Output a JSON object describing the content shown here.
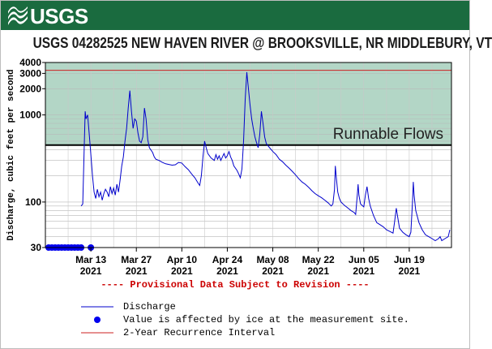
{
  "header": {
    "logo_text": "USGS",
    "banner_color": "#1a6b3f"
  },
  "chart_data": {
    "type": "line",
    "title": "USGS 04282525 NEW HAVEN RIVER @ BROOKSVILLE, NR MIDDLEBURY, VT",
    "ylabel": "Discharge, cubic feet per second",
    "xlabel": "",
    "y_scale": "log",
    "ylim": [
      30,
      4000
    ],
    "xlim": [
      "2021-02-27",
      "2021-07-02"
    ],
    "y_ticks": [
      {
        "value": 30,
        "label": "30"
      },
      {
        "value": 100,
        "label": "100"
      },
      {
        "value": 1000,
        "label": "1000"
      },
      {
        "value": 2000,
        "label": "2000"
      },
      {
        "value": 3000,
        "label": "3000"
      },
      {
        "value": 4000,
        "label": "4000"
      }
    ],
    "x_ticks": [
      {
        "date": "2021-03-13",
        "line1": "Mar 13",
        "line2": "2021"
      },
      {
        "date": "2021-03-27",
        "line1": "Mar 27",
        "line2": "2021"
      },
      {
        "date": "2021-04-10",
        "line1": "Apr 10",
        "line2": "2021"
      },
      {
        "date": "2021-04-24",
        "line1": "Apr 24",
        "line2": "2021"
      },
      {
        "date": "2021-05-08",
        "line1": "May 08",
        "line2": "2021"
      },
      {
        "date": "2021-05-22",
        "line1": "May 22",
        "line2": "2021"
      },
      {
        "date": "2021-06-05",
        "line1": "Jun 05",
        "line2": "2021"
      },
      {
        "date": "2021-06-19",
        "line1": "Jun 19",
        "line2": "2021"
      }
    ],
    "grid": true,
    "band": {
      "label": "Runnable Flows",
      "from": 450,
      "to": 4000,
      "color": "#b3d6c6"
    },
    "recurrence_interval": {
      "value": 3250,
      "color": "#cc2222"
    },
    "series": [
      {
        "name": "Discharge",
        "color": "#0000cc",
        "points": [
          [
            "2021-03-10",
            90
          ],
          [
            "2021-03-10T12",
            95
          ],
          [
            "2021-03-11",
            500
          ],
          [
            "2021-03-11T06",
            1100
          ],
          [
            "2021-03-11T12",
            900
          ],
          [
            "2021-03-12",
            1000
          ],
          [
            "2021-03-12T12",
            600
          ],
          [
            "2021-03-13",
            350
          ],
          [
            "2021-03-13T12",
            200
          ],
          [
            "2021-03-14",
            130
          ],
          [
            "2021-03-14T12",
            110
          ],
          [
            "2021-03-15",
            140
          ],
          [
            "2021-03-15T12",
            115
          ],
          [
            "2021-03-16",
            130
          ],
          [
            "2021-03-16T12",
            105
          ],
          [
            "2021-03-17",
            125
          ],
          [
            "2021-03-17T12",
            140
          ],
          [
            "2021-03-18",
            130
          ],
          [
            "2021-03-18T12",
            115
          ],
          [
            "2021-03-19",
            150
          ],
          [
            "2021-03-19T12",
            125
          ],
          [
            "2021-03-20",
            145
          ],
          [
            "2021-03-20T12",
            120
          ],
          [
            "2021-03-21",
            160
          ],
          [
            "2021-03-21T12",
            130
          ],
          [
            "2021-03-22",
            180
          ],
          [
            "2021-03-22T12",
            260
          ],
          [
            "2021-03-23",
            330
          ],
          [
            "2021-03-23T12",
            500
          ],
          [
            "2021-03-24",
            700
          ],
          [
            "2021-03-24T12",
            1200
          ],
          [
            "2021-03-25",
            1900
          ],
          [
            "2021-03-25T12",
            1100
          ],
          [
            "2021-03-26",
            700
          ],
          [
            "2021-03-26T12",
            900
          ],
          [
            "2021-03-27",
            850
          ],
          [
            "2021-03-27T12",
            620
          ],
          [
            "2021-03-28",
            500
          ],
          [
            "2021-03-28T12",
            480
          ],
          [
            "2021-03-29",
            560
          ],
          [
            "2021-03-29T12",
            1200
          ],
          [
            "2021-03-30",
            900
          ],
          [
            "2021-03-30T12",
            520
          ],
          [
            "2021-03-31",
            420
          ],
          [
            "2021-04-01",
            370
          ],
          [
            "2021-04-01T12",
            330
          ],
          [
            "2021-04-02",
            310
          ],
          [
            "2021-04-03",
            300
          ],
          [
            "2021-04-04",
            285
          ],
          [
            "2021-04-05",
            275
          ],
          [
            "2021-04-06",
            270
          ],
          [
            "2021-04-07",
            265
          ],
          [
            "2021-04-08",
            268
          ],
          [
            "2021-04-09",
            285
          ],
          [
            "2021-04-10",
            280
          ],
          [
            "2021-04-11",
            255
          ],
          [
            "2021-04-12",
            235
          ],
          [
            "2021-04-13",
            210
          ],
          [
            "2021-04-14",
            190
          ],
          [
            "2021-04-15",
            165
          ],
          [
            "2021-04-15T12",
            155
          ],
          [
            "2021-04-16",
            200
          ],
          [
            "2021-04-16T12",
            330
          ],
          [
            "2021-04-17",
            500
          ],
          [
            "2021-04-17T12",
            420
          ],
          [
            "2021-04-18",
            360
          ],
          [
            "2021-04-19",
            320
          ],
          [
            "2021-04-20",
            300
          ],
          [
            "2021-04-20T12",
            350
          ],
          [
            "2021-04-21",
            310
          ],
          [
            "2021-04-21T12",
            340
          ],
          [
            "2021-04-22",
            300
          ],
          [
            "2021-04-22T12",
            330
          ],
          [
            "2021-04-23",
            360
          ],
          [
            "2021-04-23T12",
            320
          ],
          [
            "2021-04-24",
            340
          ],
          [
            "2021-04-24T12",
            380
          ],
          [
            "2021-04-25",
            330
          ],
          [
            "2021-04-25T12",
            300
          ],
          [
            "2021-04-26",
            260
          ],
          [
            "2021-04-27",
            230
          ],
          [
            "2021-04-27T12",
            210
          ],
          [
            "2021-04-28",
            190
          ],
          [
            "2021-04-28T12",
            240
          ],
          [
            "2021-04-29",
            500
          ],
          [
            "2021-04-29T12",
            1500
          ],
          [
            "2021-04-30",
            3100
          ],
          [
            "2021-04-30T12",
            2000
          ],
          [
            "2021-05-01",
            1300
          ],
          [
            "2021-05-01T12",
            900
          ],
          [
            "2021-05-02",
            700
          ],
          [
            "2021-05-02T12",
            560
          ],
          [
            "2021-05-03",
            480
          ],
          [
            "2021-05-03T12",
            420
          ],
          [
            "2021-05-04",
            600
          ],
          [
            "2021-05-04T12",
            1100
          ],
          [
            "2021-05-05",
            800
          ],
          [
            "2021-05-05T12",
            560
          ],
          [
            "2021-05-06",
            470
          ],
          [
            "2021-05-07",
            420
          ],
          [
            "2021-05-08",
            380
          ],
          [
            "2021-05-09",
            350
          ],
          [
            "2021-05-10",
            310
          ],
          [
            "2021-05-11",
            290
          ],
          [
            "2021-05-12",
            265
          ],
          [
            "2021-05-13",
            245
          ],
          [
            "2021-05-14",
            225
          ],
          [
            "2021-05-15",
            205
          ],
          [
            "2021-05-16",
            185
          ],
          [
            "2021-05-17",
            170
          ],
          [
            "2021-05-18",
            160
          ],
          [
            "2021-05-19",
            148
          ],
          [
            "2021-05-20",
            135
          ],
          [
            "2021-05-21",
            125
          ],
          [
            "2021-05-22",
            118
          ],
          [
            "2021-05-23",
            112
          ],
          [
            "2021-05-24",
            105
          ],
          [
            "2021-05-25",
            98
          ],
          [
            "2021-05-26",
            90
          ],
          [
            "2021-05-26T12",
            95
          ],
          [
            "2021-05-27",
            140
          ],
          [
            "2021-05-27T06",
            260
          ],
          [
            "2021-05-27T12",
            200
          ],
          [
            "2021-05-28",
            130
          ],
          [
            "2021-05-28T12",
            110
          ],
          [
            "2021-05-29",
            100
          ],
          [
            "2021-05-30",
            92
          ],
          [
            "2021-05-31",
            86
          ],
          [
            "2021-06-01",
            80
          ],
          [
            "2021-06-02",
            76
          ],
          [
            "2021-06-02T12",
            72
          ],
          [
            "2021-06-03",
            120
          ],
          [
            "2021-06-03T06",
            160
          ],
          [
            "2021-06-03T12",
            120
          ],
          [
            "2021-06-04",
            95
          ],
          [
            "2021-06-05",
            88
          ],
          [
            "2021-06-05T12",
            120
          ],
          [
            "2021-06-06",
            150
          ],
          [
            "2021-06-06T12",
            110
          ],
          [
            "2021-06-07",
            90
          ],
          [
            "2021-06-08",
            70
          ],
          [
            "2021-06-09",
            58
          ],
          [
            "2021-06-10",
            55
          ],
          [
            "2021-06-11",
            52
          ],
          [
            "2021-06-12",
            48
          ],
          [
            "2021-06-13",
            46
          ],
          [
            "2021-06-14",
            44
          ],
          [
            "2021-06-14T12",
            60
          ],
          [
            "2021-06-15",
            85
          ],
          [
            "2021-06-15T12",
            65
          ],
          [
            "2021-06-16",
            50
          ],
          [
            "2021-06-17",
            45
          ],
          [
            "2021-06-18",
            42
          ],
          [
            "2021-06-19",
            40
          ],
          [
            "2021-06-19T12",
            45
          ],
          [
            "2021-06-20",
            100
          ],
          [
            "2021-06-20T06",
            170
          ],
          [
            "2021-06-20T12",
            120
          ],
          [
            "2021-06-21",
            80
          ],
          [
            "2021-06-22",
            58
          ],
          [
            "2021-06-23",
            48
          ],
          [
            "2021-06-24",
            42
          ],
          [
            "2021-06-25",
            40
          ],
          [
            "2021-06-26",
            38
          ],
          [
            "2021-06-27",
            36
          ],
          [
            "2021-06-28",
            38
          ],
          [
            "2021-06-28T12",
            40
          ],
          [
            "2021-06-29",
            36
          ],
          [
            "2021-06-30",
            38
          ],
          [
            "2021-07-01",
            40
          ],
          [
            "2021-07-01T12",
            48
          ]
        ]
      },
      {
        "name": "Value is affected by ice at the measurement site.",
        "color": "#0000ee",
        "y": 30,
        "dates": [
          "2021-02-28",
          "2021-03-01",
          "2021-03-02",
          "2021-03-03",
          "2021-03-04",
          "2021-03-05",
          "2021-03-06",
          "2021-03-07",
          "2021-03-08",
          "2021-03-09",
          "2021-03-10",
          "2021-03-13"
        ]
      },
      {
        "name": "2-Year Recurrence Interval",
        "color": "#cc2222"
      }
    ]
  },
  "provisional_text": "---- Provisional Data Subject to Revision ----"
}
